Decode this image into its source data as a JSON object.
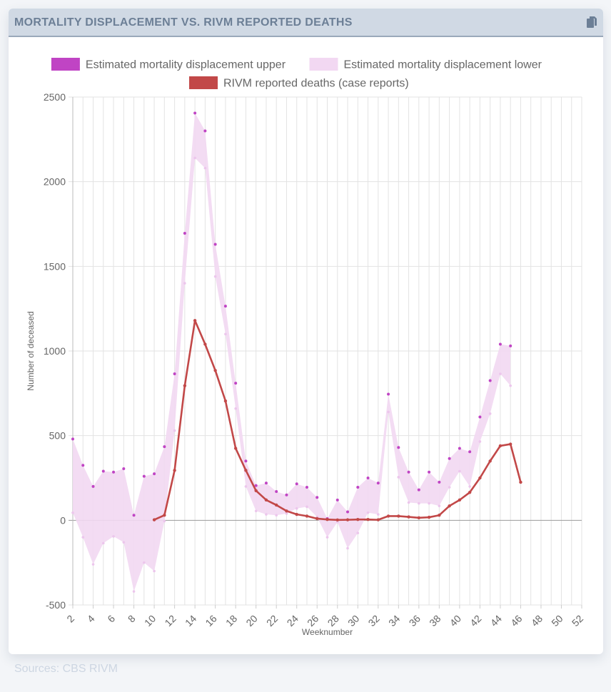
{
  "header": {
    "title": "MORTALITY DISPLACEMENT VS. RIVM REPORTED DEATHS",
    "copy_icon": "copy-icon"
  },
  "sources": "Sources: CBS  RIVM",
  "colors": {
    "upper": "#c044c4",
    "lower": "#f2d8f2",
    "rivm": "#c24848",
    "grid": "#e3e3e3",
    "zero_line": "#9a9a9a",
    "tick_text": "#666666"
  },
  "chart_data": {
    "type": "line",
    "title": "",
    "xlabel": "Weeknumber",
    "ylabel": "Number of deceased",
    "xlim": [
      2,
      52
    ],
    "ylim": [
      -500,
      2500
    ],
    "x_ticks": [
      2,
      4,
      6,
      8,
      10,
      12,
      14,
      16,
      18,
      20,
      22,
      24,
      26,
      28,
      30,
      32,
      34,
      36,
      38,
      40,
      42,
      44,
      46,
      48,
      50,
      52
    ],
    "y_ticks": [
      -500,
      0,
      500,
      1000,
      1500,
      2000,
      2500
    ],
    "legend": [
      "Estimated mortality displacement upper",
      "Estimated mortality displacement lower",
      "RIVM reported deaths (case reports)"
    ],
    "series": [
      {
        "name": "Estimated mortality displacement upper",
        "x": [
          2,
          3,
          4,
          5,
          6,
          7,
          8,
          9,
          10,
          11,
          12,
          13,
          14,
          15,
          16,
          17,
          18,
          19,
          20,
          21,
          22,
          23,
          24,
          25,
          26,
          27,
          28,
          29,
          30,
          31,
          32,
          33,
          34,
          35,
          36,
          37,
          38,
          39,
          40,
          41,
          42,
          43,
          44,
          45
        ],
        "values": [
          480,
          325,
          200,
          290,
          285,
          305,
          30,
          260,
          275,
          435,
          865,
          1695,
          2405,
          2300,
          1630,
          1265,
          810,
          350,
          205,
          220,
          170,
          150,
          215,
          195,
          135,
          10,
          120,
          50,
          195,
          250,
          220,
          745,
          430,
          285,
          180,
          285,
          225,
          365,
          425,
          405,
          610,
          825,
          1040,
          1030
        ]
      },
      {
        "name": "Estimated mortality displacement lower",
        "x": [
          2,
          3,
          4,
          5,
          6,
          7,
          8,
          9,
          10,
          11,
          12,
          13,
          14,
          15,
          16,
          17,
          18,
          19,
          20,
          21,
          22,
          23,
          24,
          25,
          26,
          27,
          28,
          29,
          30,
          31,
          32,
          33,
          34,
          35,
          36,
          37,
          38,
          39,
          40,
          41,
          42,
          43,
          44,
          45
        ],
        "values": [
          45,
          -100,
          -260,
          -135,
          -95,
          -130,
          -420,
          -250,
          -300,
          -5,
          530,
          1400,
          2140,
          2080,
          1440,
          1100,
          660,
          200,
          55,
          35,
          30,
          40,
          70,
          80,
          20,
          -100,
          -10,
          -165,
          -75,
          45,
          35,
          640,
          255,
          105,
          100,
          100,
          85,
          195,
          290,
          200,
          465,
          630,
          865,
          795
        ]
      },
      {
        "name": "RIVM reported deaths (case reports)",
        "x": [
          10,
          11,
          12,
          13,
          14,
          15,
          16,
          17,
          18,
          19,
          20,
          21,
          22,
          23,
          24,
          25,
          26,
          27,
          28,
          29,
          30,
          31,
          32,
          33,
          34,
          35,
          36,
          37,
          38,
          39,
          40,
          41,
          42,
          43,
          44,
          45,
          46
        ],
        "values": [
          3,
          30,
          295,
          795,
          1180,
          1040,
          885,
          705,
          425,
          295,
          175,
          120,
          90,
          55,
          35,
          25,
          10,
          5,
          2,
          3,
          5,
          5,
          3,
          25,
          25,
          20,
          15,
          18,
          30,
          85,
          120,
          165,
          250,
          350,
          440,
          450,
          225
        ]
      }
    ]
  }
}
